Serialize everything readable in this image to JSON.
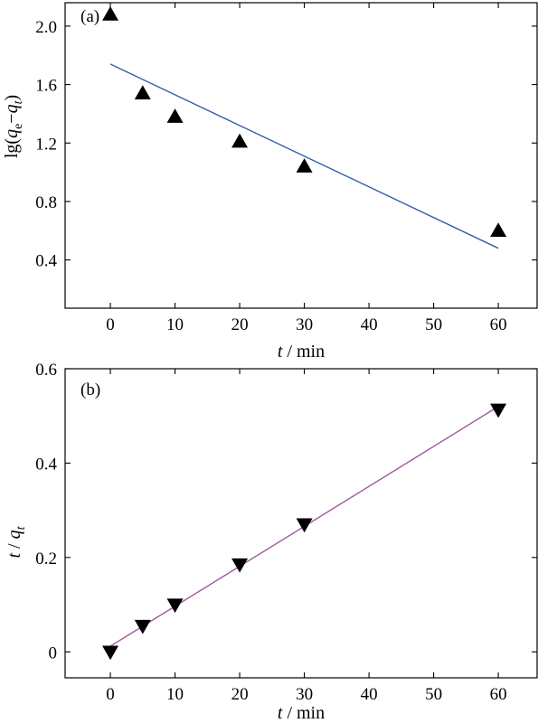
{
  "chart_data": [
    {
      "type": "scatter",
      "panel_label": "(a)",
      "xlabel": "t / min",
      "ylabel": "lg(qe−qt)",
      "xlim": [
        -7,
        66
      ],
      "ylim": [
        0.07,
        2.16
      ],
      "xticks": [
        0,
        10,
        20,
        30,
        40,
        50,
        60
      ],
      "yticks": [
        0.4,
        0.8,
        1.2,
        1.6,
        2.0
      ],
      "ytick_labels": [
        "0.4",
        "0.8",
        "1.2",
        "1.6",
        "2.0"
      ],
      "grid": false,
      "legend": "none",
      "marker": "triangle-up",
      "marker_color": "#000000",
      "line_color": "#2f5fa8",
      "points": {
        "x": [
          0,
          5,
          10,
          20,
          30,
          60
        ],
        "y": [
          2.08,
          1.54,
          1.38,
          1.21,
          1.04,
          0.6
        ]
      },
      "fit_line": {
        "x": [
          0,
          60
        ],
        "y": [
          1.74,
          0.48
        ]
      }
    },
    {
      "type": "scatter",
      "panel_label": "(b)",
      "xlabel": "t / min",
      "ylabel": "t / qt",
      "xlim": [
        -7,
        66
      ],
      "ylim": [
        -0.055,
        0.6
      ],
      "xticks": [
        0,
        10,
        20,
        30,
        40,
        50,
        60
      ],
      "yticks": [
        0,
        0.2,
        0.4,
        0.6
      ],
      "ytick_labels": [
        "0",
        "0.2",
        "0.4",
        "0.6"
      ],
      "grid": false,
      "legend": "none",
      "marker": "triangle-down",
      "marker_color": "#000000",
      "line_color": "#9c5a9c",
      "points": {
        "x": [
          0,
          5,
          10,
          20,
          30,
          60
        ],
        "y": [
          0.0,
          0.055,
          0.1,
          0.185,
          0.27,
          0.513
        ]
      },
      "fit_line": {
        "x": [
          0,
          60
        ],
        "y": [
          0.012,
          0.52
        ]
      }
    }
  ]
}
